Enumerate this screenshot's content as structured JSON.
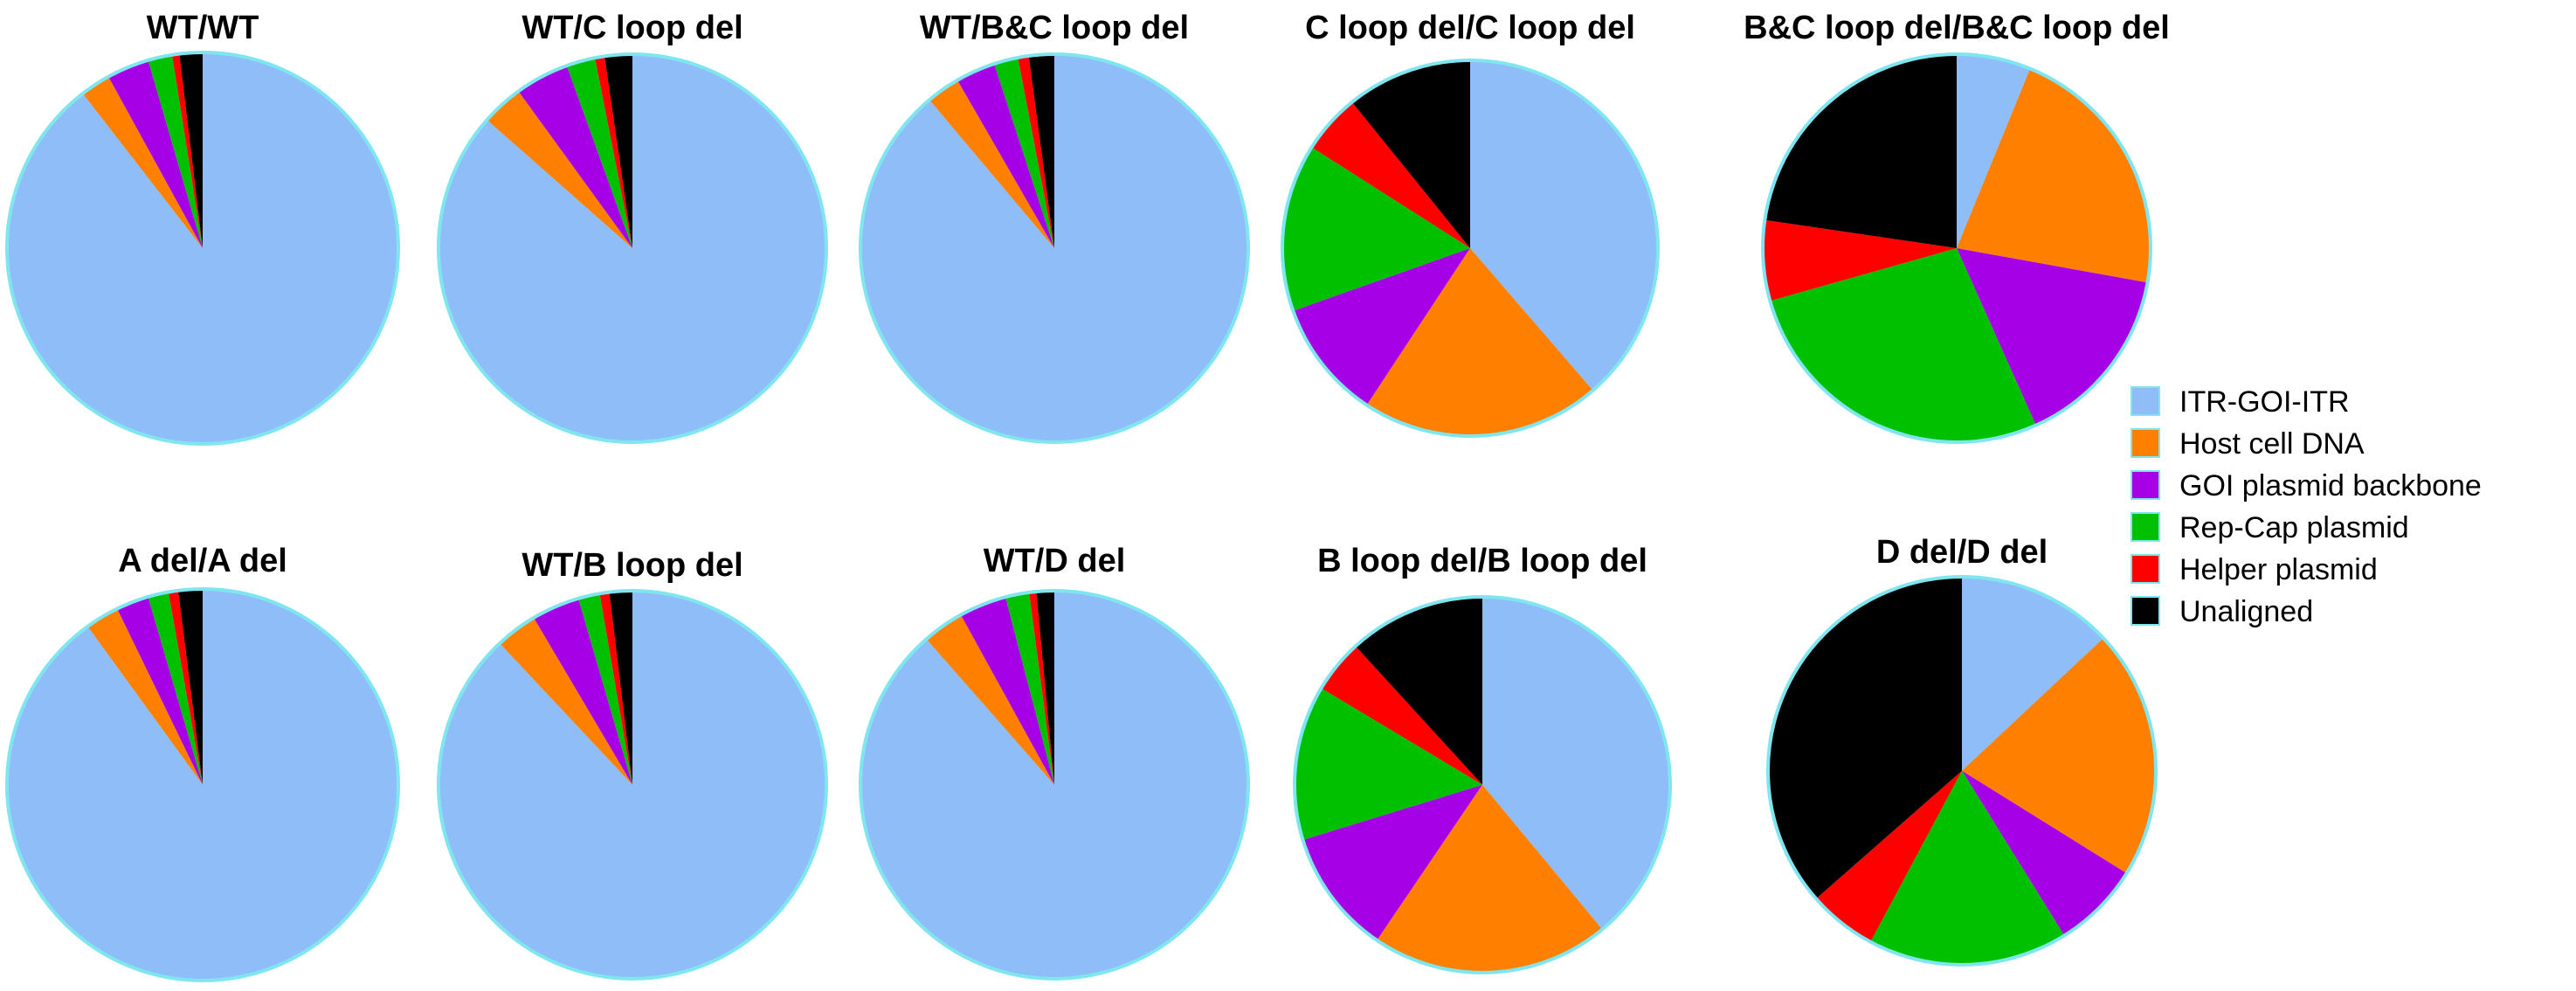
{
  "chart_data": {
    "type": "pie",
    "legend": {
      "position": "right",
      "entries": [
        {
          "name": "ITR-GOI-ITR",
          "color": "#8fbdf8"
        },
        {
          "name": "Host cell DNA",
          "color": "#ff7f00"
        },
        {
          "name": "GOI plasmid backbone",
          "color": "#a500e6"
        },
        {
          "name": "Rep-Cap plasmid",
          "color": "#00c000"
        },
        {
          "name": "Helper plasmid",
          "color": "#ff0000"
        },
        {
          "name": "Unaligned",
          "color": "#000000"
        }
      ]
    },
    "categories": [
      "ITR-GOI-ITR",
      "Host cell DNA",
      "GOI plasmid backbone",
      "Rep-Cap plasmid",
      "Helper plasmid",
      "Unaligned"
    ],
    "pies": [
      {
        "title": "WT/WT",
        "values": [
          89.5,
          2.5,
          3.5,
          2.0,
          0.6,
          1.9
        ]
      },
      {
        "title": "WT/C loop del",
        "values": [
          86.5,
          3.5,
          4.5,
          2.4,
          0.8,
          2.3
        ]
      },
      {
        "title": "WT/B&C loop del",
        "values": [
          88.5,
          2.8,
          3.3,
          2.0,
          0.9,
          2.1
        ]
      },
      {
        "title": "C loop del/C loop del",
        "values": [
          37.5,
          20.0,
          10.0,
          14.0,
          5.0,
          10.5
        ]
      },
      {
        "title": "B&C loop del/B&C loop del",
        "values": [
          6.0,
          21.0,
          15.0,
          26.5,
          6.5,
          22.0
        ]
      },
      {
        "title": "A del/A del",
        "values": [
          90.0,
          2.8,
          2.7,
          1.7,
          0.8,
          2.0
        ]
      },
      {
        "title": "WT/B loop del",
        "values": [
          88.0,
          3.5,
          4.0,
          1.8,
          0.8,
          1.9
        ]
      },
      {
        "title": "WT/D del",
        "values": [
          89.5,
          3.5,
          4.0,
          2.0,
          0.6,
          1.5
        ]
      },
      {
        "title": "B loop del/B loop del",
        "values": [
          38.0,
          20.0,
          10.5,
          13.0,
          4.5,
          11.5
        ]
      },
      {
        "title": "D del/D del",
        "values": [
          12.5,
          20.0,
          7.0,
          16.0,
          5.5,
          35.0
        ]
      }
    ]
  }
}
